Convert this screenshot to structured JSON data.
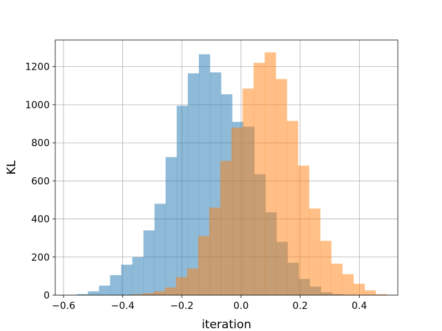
{
  "chart_data": {
    "type": "bar",
    "title": "",
    "xlabel": "iteration",
    "ylabel": "KL",
    "xlim": [
      -0.628,
      0.53
    ],
    "ylim": [
      0,
      1340
    ],
    "grid": true,
    "xticks": [
      -0.6,
      -0.4,
      -0.2,
      0.0,
      0.2,
      0.4
    ],
    "xtick_labels": [
      "−0.6",
      "−0.4",
      "−0.2",
      "0.0",
      "0.2",
      "0.4"
    ],
    "yticks": [
      0,
      200,
      400,
      600,
      800,
      1000,
      1200
    ],
    "ytick_labels": [
      "0",
      "200",
      "400",
      "600",
      "800",
      "1000",
      "1200"
    ],
    "series": [
      {
        "color": "#1f77b4",
        "opacity": 0.5,
        "bin_start": -0.555,
        "bin_width": 0.0375,
        "counts": [
          5,
          20,
          50,
          105,
          160,
          200,
          340,
          480,
          725,
          995,
          1165,
          1265,
          1170,
          1055,
          910,
          885,
          635,
          435,
          280,
          170,
          85,
          45,
          15,
          5
        ]
      },
      {
        "color": "#ff7f0e",
        "opacity": 0.5,
        "bin_start": -0.37,
        "bin_width": 0.0375,
        "counts": [
          5,
          10,
          20,
          40,
          95,
          140,
          310,
          460,
          705,
          880,
          1085,
          1220,
          1275,
          1135,
          915,
          680,
          455,
          285,
          165,
          110,
          60,
          25,
          5
        ]
      }
    ]
  }
}
